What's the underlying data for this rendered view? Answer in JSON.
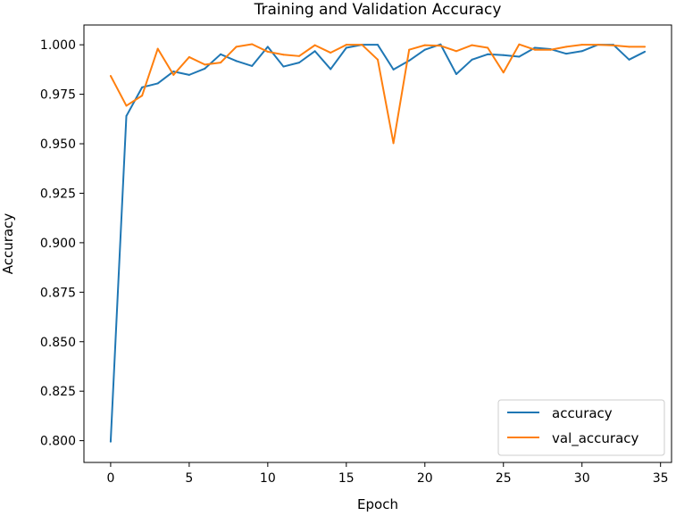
{
  "chart_data": {
    "type": "line",
    "title": "Training and Validation Accuracy",
    "xlabel": "Epoch",
    "ylabel": "Accuracy",
    "xlim": [
      -1.7,
      35.7
    ],
    "ylim": [
      0.789,
      1.01
    ],
    "xticks": [
      0,
      5,
      10,
      15,
      20,
      25,
      30,
      35
    ],
    "xtick_labels": [
      "0",
      "5",
      "10",
      "15",
      "20",
      "25",
      "30",
      "35"
    ],
    "yticks": [
      0.8,
      0.825,
      0.85,
      0.875,
      0.9,
      0.925,
      0.95,
      0.975,
      1.0
    ],
    "ytick_labels": [
      "0.800",
      "0.825",
      "0.850",
      "0.875",
      "0.900",
      "0.925",
      "0.950",
      "0.975",
      "1.000"
    ],
    "grid": false,
    "legend_position": "lower-right",
    "x": [
      0,
      1,
      2,
      3,
      4,
      5,
      6,
      7,
      8,
      9,
      10,
      11,
      12,
      13,
      14,
      15,
      16,
      17,
      18,
      19,
      20,
      21,
      22,
      23,
      24,
      25,
      26,
      27,
      28,
      29,
      30,
      31,
      32,
      33,
      34
    ],
    "series": [
      {
        "name": "accuracy",
        "color": "#1f77b4",
        "values": [
          0.7995,
          0.964,
          0.9785,
          0.9805,
          0.9865,
          0.9848,
          0.988,
          0.9952,
          0.9918,
          0.9893,
          0.999,
          0.989,
          0.991,
          0.9968,
          0.9877,
          0.9985,
          1.0,
          1.0,
          0.9875,
          0.992,
          0.9975,
          1.0002,
          0.9852,
          0.9925,
          0.9952,
          0.9948,
          0.994,
          0.9985,
          0.9978,
          0.9955,
          0.9968,
          1.0,
          1.0,
          0.9925,
          0.9965
        ]
      },
      {
        "name": "val_accuracy",
        "color": "#ff7f0e",
        "values": [
          0.9843,
          0.9692,
          0.9743,
          0.998,
          0.9848,
          0.9938,
          0.99,
          0.991,
          0.999,
          1.0003,
          0.9965,
          0.995,
          0.9943,
          0.9998,
          0.996,
          1.0,
          1.0,
          0.9925,
          0.9503,
          0.9975,
          0.9998,
          0.9995,
          0.9968,
          0.9998,
          0.9985,
          0.986,
          1.0002,
          0.9975,
          0.9975,
          0.999,
          1.0,
          1.0,
          0.9997,
          0.999,
          0.999
        ]
      }
    ]
  }
}
